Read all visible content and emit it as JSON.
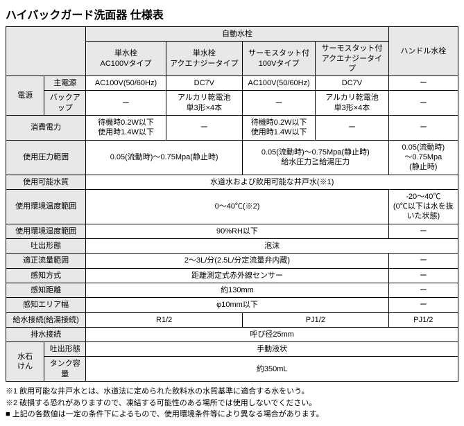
{
  "title": "ハイバックガード洗面器 仕様表",
  "colgroup": {
    "head1": 55,
    "head2": 60,
    "c1": 115,
    "c2": 110,
    "c3": 105,
    "c4": 105,
    "c5": 100
  },
  "header": {
    "auto": "自動水栓",
    "handle": "ハンドル水栓",
    "cols": [
      "単水栓\nAC100Vタイプ",
      "単水栓\nアクエナジータイプ",
      "サーモスタット付\n100Vタイプ",
      "サーモスタット付\nアクエナジータイプ"
    ]
  },
  "rows": {
    "power_group": "電源",
    "main_power": {
      "label": "主電源",
      "c1": "AC100V(50/60Hz)",
      "c2": "DC7V",
      "c3": "AC100V(50/60Hz)",
      "c4": "DC7V",
      "c5": "ー"
    },
    "backup": {
      "label": "バックアップ",
      "c1": "ー",
      "c2": "アルカリ乾電池\n単3形×4本",
      "c3": "ー",
      "c4": "アルカリ乾電池\n単3形×4本",
      "c5": "ー"
    },
    "consumption": {
      "label": "消費電力",
      "c1": "待機時0.2W以下\n使用時1.4W以下",
      "c2": "ー",
      "c3": "待機時0.2W以下\n使用時1.4W以下",
      "c4": "ー",
      "c5": "ー"
    },
    "pressure": {
      "label": "使用圧力範囲",
      "left": "0.05(流動時)～0.75Mpa(静止時)",
      "mid": "0.05(流動時)～0.75Mpa(静止時)\n給水圧力≧給湯圧力",
      "right": "0.05(流動時)\n～0.75Mpa\n(静止時)"
    },
    "quality": {
      "label": "使用可能水質",
      "all": "水道水および飲用可能な井戸水(※1)"
    },
    "temp": {
      "label": "使用環境温度範囲",
      "left": "0～40℃(※2)",
      "right": "-20～40℃\n(0℃以下は水を抜いた状態)"
    },
    "humidity": {
      "label": "使用環境湿度範囲",
      "left": "90%RH以下",
      "right": "ー"
    },
    "discharge": {
      "label": "吐出形態",
      "all": "泡沫"
    },
    "flow": {
      "label": "適正流量範囲",
      "left": "2～3L/分(2.5L/分定流量弁内蔵)",
      "right": "ー"
    },
    "sense": {
      "label": "感知方式",
      "left": "距離測定式赤外線センサー",
      "right": "ー"
    },
    "distance": {
      "label": "感知距離",
      "left": "約130mm",
      "right": "ー"
    },
    "area": {
      "label": "感知エリア幅",
      "left": "φ10mm以下",
      "right": "ー"
    },
    "supply": {
      "label": "給水接続(給湯接続)",
      "a": "R1/2",
      "b": "PJ1/2",
      "c": "PJ1/2"
    },
    "drain": {
      "label": "排水接続",
      "all": "呼び径25mm"
    },
    "soap_group": "水石\nけん",
    "soap_type": {
      "label": "吐出形態",
      "all": "手動液状"
    },
    "tank": {
      "label": "タンク容量",
      "all": "約350mL"
    }
  },
  "notes": [
    "※1 飲用可能な井戸水とは、水道法に定められた飲料水の水質基準に適合する水をいう。",
    "※2 破損する恐れがありますので、凍結する可能性のある場所では使用しないでください。",
    "■ 上記の各数値は一定の条件下によるもので、使用環境条件等により異なる場合があります。"
  ]
}
